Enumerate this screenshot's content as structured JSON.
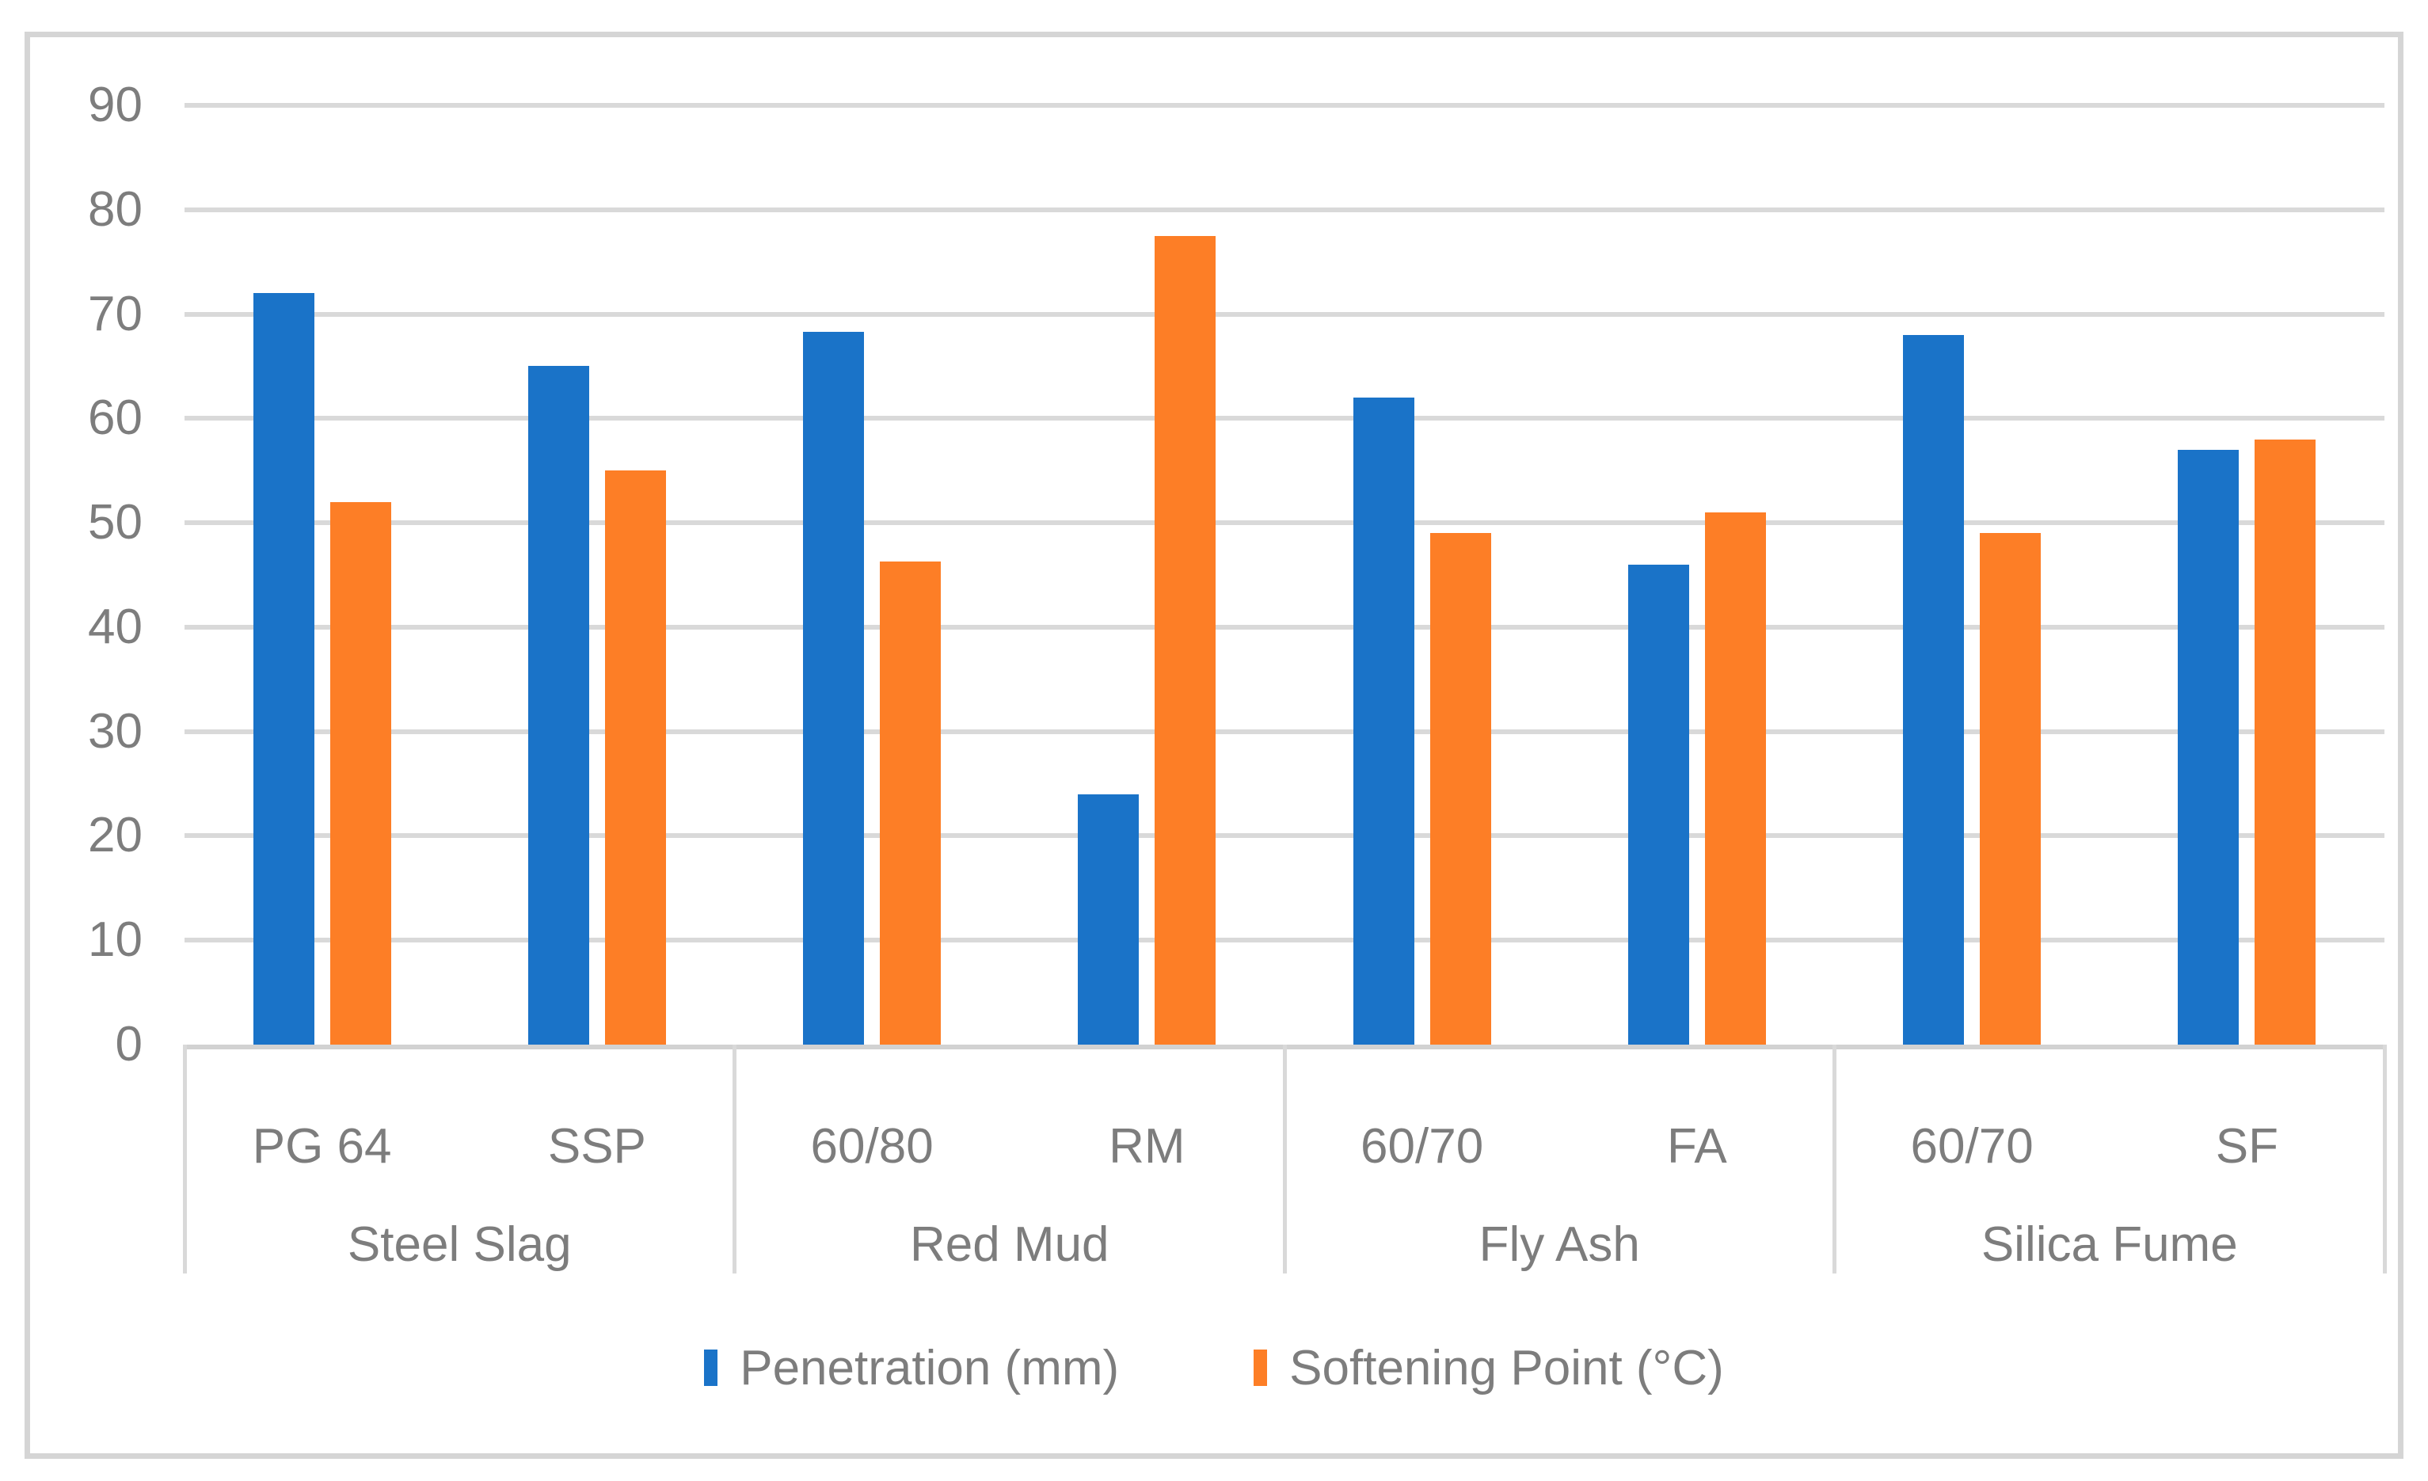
{
  "colors": {
    "series_blue": "#1A73C8",
    "series_orange": "#FD7E26",
    "grid_line": "#D9D9D9",
    "axis_line": "#D2D2D2",
    "frame_border": "#D5D5D5",
    "text_gray": "#7D7D7D",
    "background": "#FFFFFF"
  },
  "chart_data": {
    "type": "bar",
    "grid": true,
    "legend_position": "bottom",
    "categories": [
      "PG 64",
      "SSP",
      "60/80",
      "RM",
      "60/70",
      "FA",
      "60/70",
      "SF"
    ],
    "group_labels": [
      "Steel Slag",
      "Red Mud",
      "Fly Ash",
      "Silica Fume"
    ],
    "categories_per_group": 2,
    "series": [
      {
        "name": "Penetration (mm)",
        "color": "#1A73C8",
        "values": [
          72,
          65,
          68.3,
          24,
          62,
          46,
          68,
          57
        ]
      },
      {
        "name": "Softening Point (°C)",
        "color": "#FD7E26",
        "values": [
          52,
          55,
          46.3,
          77.5,
          49,
          51,
          49,
          58
        ]
      }
    ],
    "y_axis": {
      "min": 0,
      "max": 90,
      "step": 10,
      "tick_labels": [
        "0",
        "10",
        "20",
        "30",
        "40",
        "50",
        "60",
        "70",
        "80",
        "90"
      ]
    }
  }
}
